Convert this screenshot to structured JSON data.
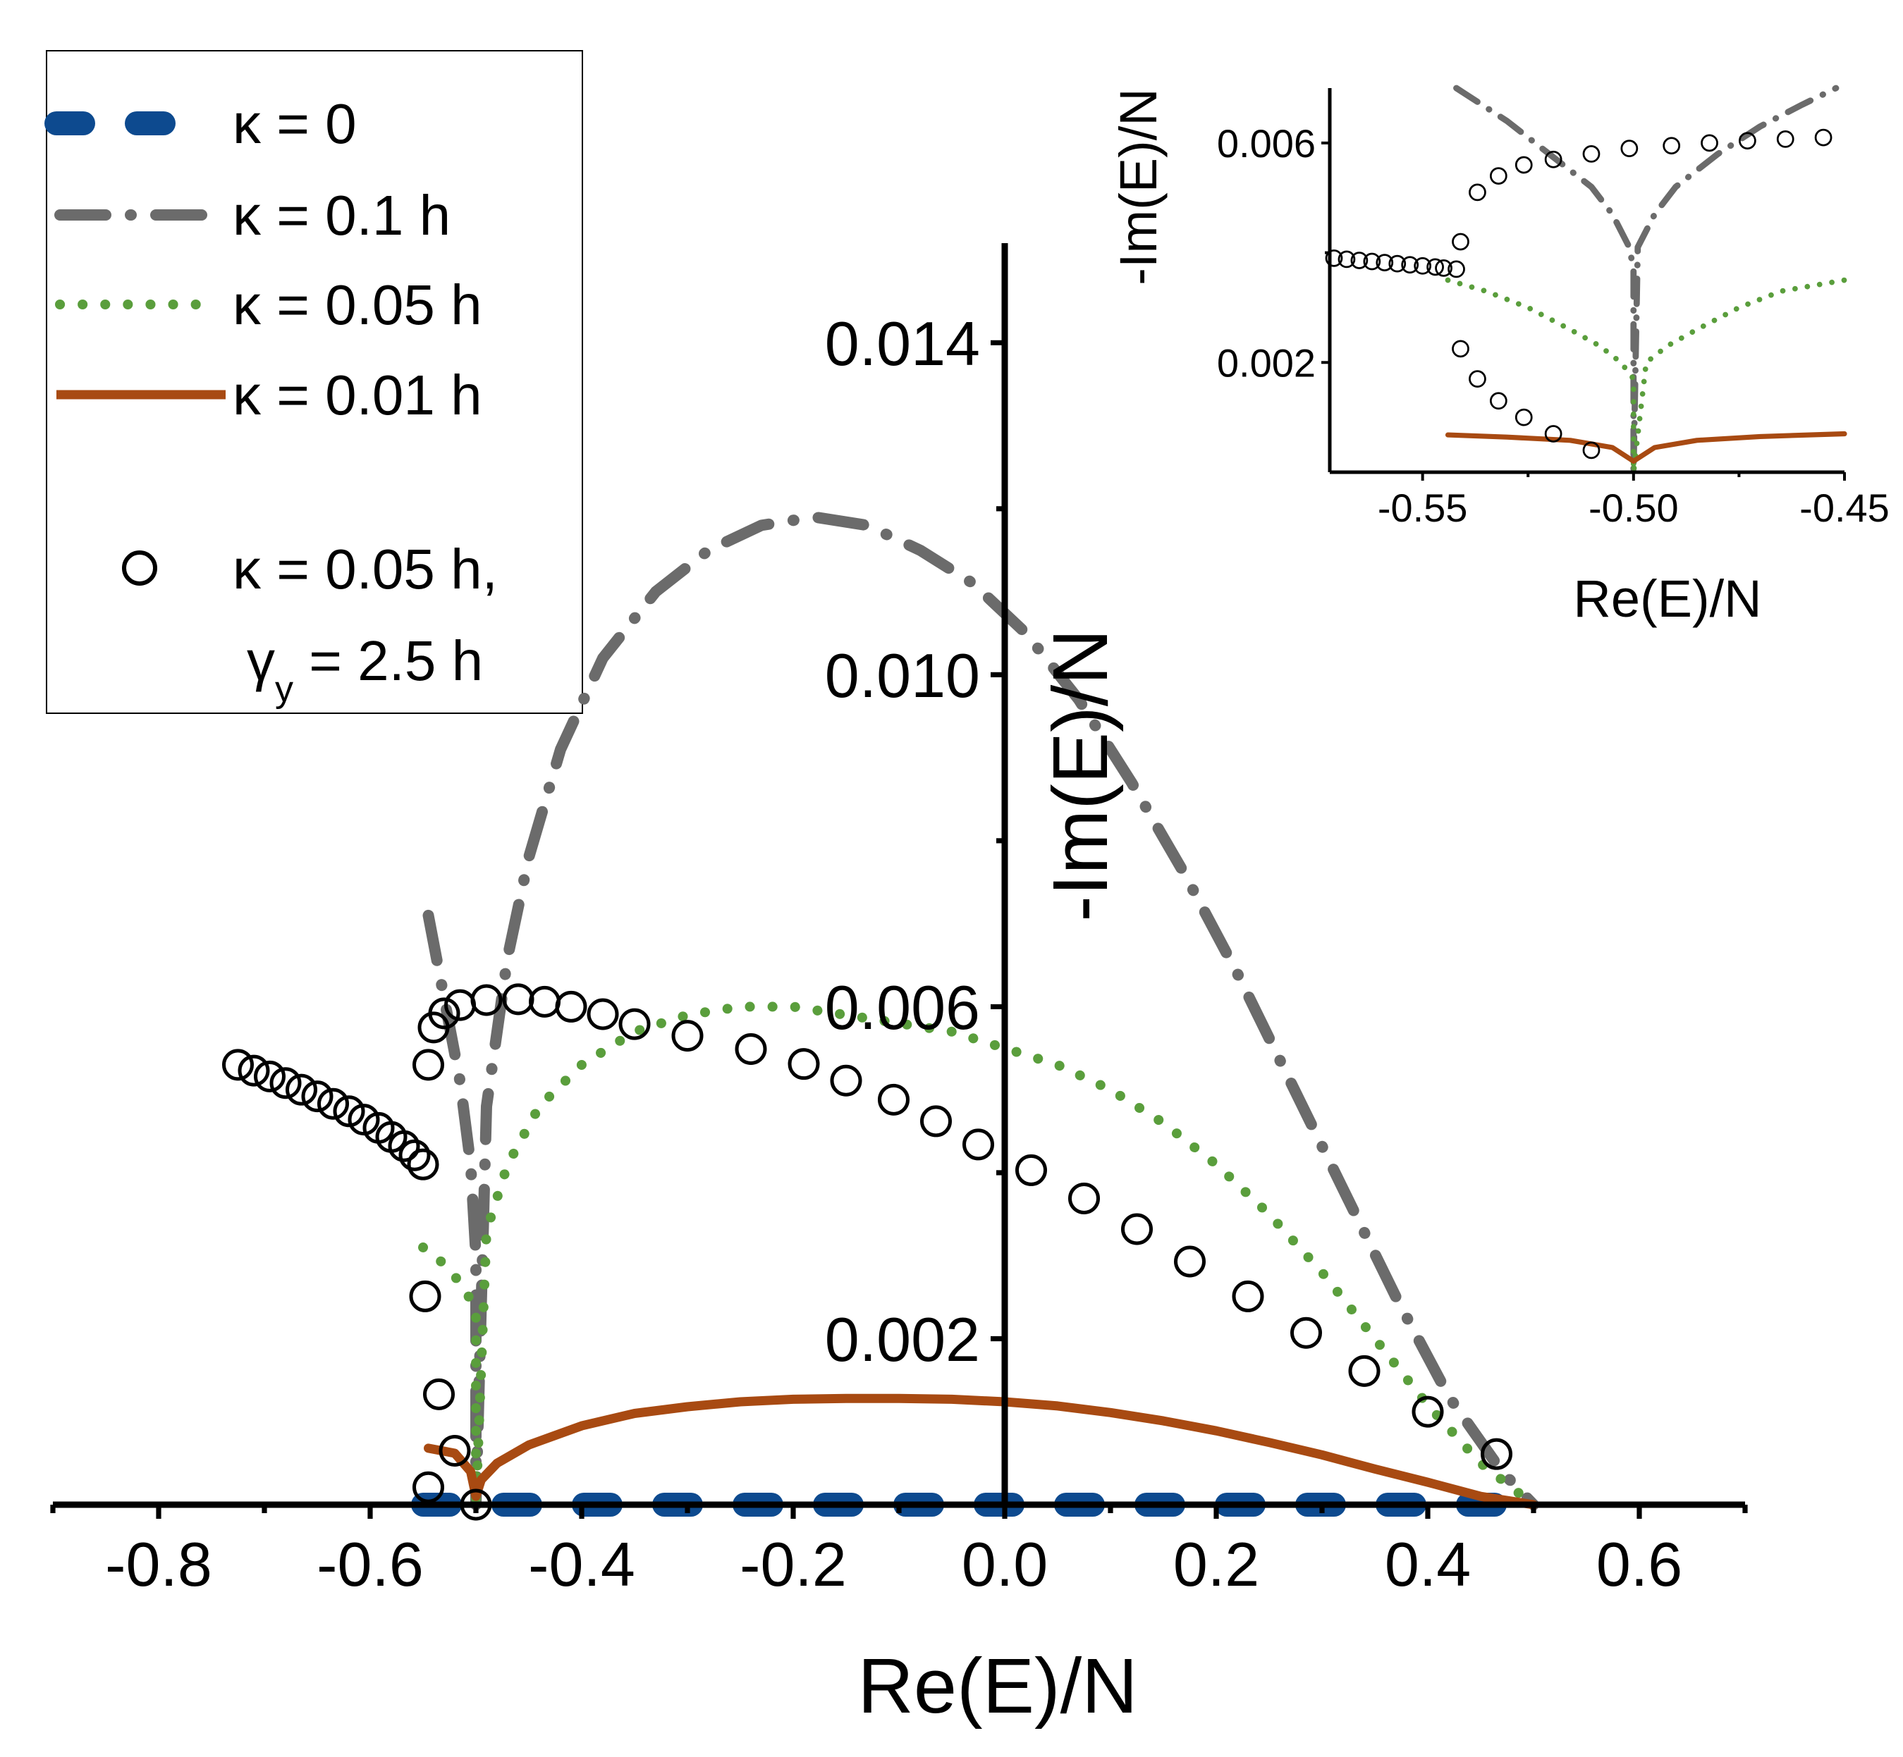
{
  "colors": {
    "k0": "#0d4a8f",
    "k01": "#6b6b6b",
    "k005": "#5a9e3c",
    "k001": "#a84a12",
    "circles": "#000000"
  },
  "legend": {
    "entries": [
      {
        "label": "κ = 0"
      },
      {
        "label": "κ = 0.1 h"
      },
      {
        "label": "κ = 0.05 h"
      },
      {
        "label": "κ = 0.01 h"
      },
      {
        "label": "κ = 0.05 h,"
      }
    ],
    "gamma_label": "γ",
    "gamma_sub": "y",
    "gamma_rest": " = 2.5 h"
  },
  "chart_data": [
    {
      "id": "main",
      "type": "scatter",
      "xlabel": "Re(E)/N",
      "ylabel": "-Im(E)/N",
      "xlim": [
        -0.9,
        0.7
      ],
      "ylim": [
        0,
        0.0152
      ],
      "x_ticks": [
        "-0.8",
        "-0.6",
        "-0.4",
        "-0.2",
        "0.0",
        "0.2",
        "0.4",
        "0.6"
      ],
      "x_tick_values": [
        -0.8,
        -0.6,
        -0.4,
        -0.2,
        0.0,
        0.2,
        0.4,
        0.6
      ],
      "y_ticks": [
        "0.002",
        "0.006",
        "0.010",
        "0.014"
      ],
      "y_tick_values": [
        0.002,
        0.006,
        0.01,
        0.014
      ],
      "series": [
        {
          "name": "κ = 0",
          "style": "dash-blue",
          "x": [
            -0.55,
            0.5
          ],
          "y": [
            0.0,
            0.0
          ]
        },
        {
          "name": "κ = 0.1 h",
          "style": "dashdot-gray",
          "x": [
            -0.545,
            -0.53,
            -0.515,
            -0.505,
            -0.5,
            -0.5,
            -0.49,
            -0.47,
            -0.45,
            -0.42,
            -0.38,
            -0.33,
            -0.28,
            -0.23,
            -0.18,
            -0.13,
            -0.08,
            -0.03,
            0.02,
            0.07,
            0.12,
            0.17,
            0.22,
            0.27,
            0.32,
            0.37,
            0.42,
            0.47,
            0.5
          ],
          "y": [
            0.0071,
            0.0061,
            0.0051,
            0.0041,
            0.003,
            0.0,
            0.0048,
            0.0066,
            0.0078,
            0.0091,
            0.0102,
            0.011,
            0.0115,
            0.0118,
            0.0119,
            0.0118,
            0.0115,
            0.0111,
            0.0105,
            0.0097,
            0.0087,
            0.0076,
            0.0064,
            0.0051,
            0.0038,
            0.0025,
            0.0013,
            0.0004,
            0.0
          ]
        },
        {
          "name": "κ = 0.05 h",
          "style": "dot-green",
          "x": [
            -0.55,
            -0.53,
            -0.51,
            -0.5,
            -0.5,
            -0.49,
            -0.47,
            -0.44,
            -0.4,
            -0.35,
            -0.3,
            -0.25,
            -0.2,
            -0.15,
            -0.1,
            -0.05,
            0.0,
            0.05,
            0.1,
            0.15,
            0.2,
            0.25,
            0.3,
            0.35,
            0.4,
            0.45,
            0.48,
            0.5
          ],
          "y": [
            0.0031,
            0.0029,
            0.0026,
            0.0023,
            0.0,
            0.0033,
            0.0041,
            0.0048,
            0.0053,
            0.0057,
            0.0059,
            0.006,
            0.006,
            0.0059,
            0.0058,
            0.0057,
            0.0055,
            0.0053,
            0.005,
            0.0046,
            0.0041,
            0.0035,
            0.0028,
            0.002,
            0.0012,
            0.0005,
            0.0002,
            0.0
          ]
        },
        {
          "name": "κ = 0.01 h",
          "style": "solid-brown",
          "x": [
            -0.545,
            -0.52,
            -0.505,
            -0.5,
            -0.495,
            -0.48,
            -0.45,
            -0.4,
            -0.35,
            -0.3,
            -0.25,
            -0.2,
            -0.15,
            -0.1,
            -0.05,
            0.0,
            0.05,
            0.1,
            0.15,
            0.2,
            0.25,
            0.3,
            0.35,
            0.4,
            0.45,
            0.5
          ],
          "y": [
            0.00068,
            0.00062,
            0.0004,
            0.0001,
            0.0003,
            0.0005,
            0.00072,
            0.00095,
            0.0011,
            0.00118,
            0.00124,
            0.00127,
            0.00128,
            0.00128,
            0.00127,
            0.00124,
            0.00119,
            0.00111,
            0.00101,
            0.00089,
            0.00075,
            0.0006,
            0.00043,
            0.00027,
            0.0001,
            0.0
          ]
        },
        {
          "name": "κ = 0.05 h, γy = 2.5 h",
          "style": "circles",
          "x": [
            -0.725,
            -0.71,
            -0.695,
            -0.68,
            -0.665,
            -0.65,
            -0.635,
            -0.62,
            -0.606,
            -0.592,
            -0.58,
            -0.568,
            -0.558,
            -0.55,
            -0.545,
            -0.548,
            -0.54,
            -0.53,
            -0.515,
            -0.49,
            -0.46,
            -0.435,
            -0.41,
            -0.38,
            -0.35,
            -0.3,
            -0.24,
            -0.19,
            -0.15,
            -0.105,
            -0.065,
            -0.025,
            0.025,
            0.075,
            0.125,
            0.175,
            0.23,
            0.285,
            0.34,
            0.4,
            0.465,
            -0.545,
            -0.535,
            -0.52,
            -0.5
          ],
          "y": [
            0.0053,
            0.00523,
            0.00516,
            0.00508,
            0.005,
            0.00492,
            0.00483,
            0.00474,
            0.00464,
            0.00454,
            0.00443,
            0.00432,
            0.00421,
            0.0041,
            0.0053,
            0.00251,
            0.00575,
            0.00592,
            0.00602,
            0.00608,
            0.00609,
            0.00606,
            0.006,
            0.00591,
            0.00579,
            0.00565,
            0.00549,
            0.00531,
            0.00511,
            0.00488,
            0.00462,
            0.00434,
            0.00403,
            0.00369,
            0.00332,
            0.00293,
            0.00251,
            0.00207,
            0.00161,
            0.00112,
            0.00061,
            0.00021,
            0.00133,
            0.00065,
            0.0
          ]
        }
      ]
    },
    {
      "id": "inset",
      "type": "scatter",
      "xlabel": "Re(E)/N",
      "ylabel": "-Im(E)/N",
      "xlim": [
        -0.572,
        -0.45
      ],
      "ylim": [
        0.0,
        0.007
      ],
      "x_ticks": [
        "-0.55",
        "-0.50",
        "-0.45"
      ],
      "x_tick_values": [
        -0.55,
        -0.5,
        -0.45
      ],
      "y_ticks": [
        "0.002",
        "0.006"
      ],
      "y_tick_values": [
        0.002,
        0.006
      ],
      "series": [
        {
          "name": "κ = 0.1 h",
          "style": "dashdot-gray",
          "x": [
            -0.542,
            -0.53,
            -0.52,
            -0.51,
            -0.505,
            -0.501,
            -0.5,
            -0.5,
            -0.499,
            -0.495,
            -0.49,
            -0.48,
            -0.47,
            -0.46,
            -0.452
          ],
          "y": [
            0.007,
            0.0064,
            0.0058,
            0.0052,
            0.0047,
            0.0041,
            0.0037,
            0.0,
            0.0041,
            0.0047,
            0.0052,
            0.0058,
            0.0063,
            0.0067,
            0.007
          ]
        },
        {
          "name": "κ = 0.05 h",
          "style": "dot-green",
          "x": [
            -0.544,
            -0.535,
            -0.525,
            -0.515,
            -0.508,
            -0.503,
            -0.5,
            -0.5,
            -0.497,
            -0.492,
            -0.485,
            -0.475,
            -0.465,
            -0.45
          ],
          "y": [
            0.0035,
            0.0033,
            0.003,
            0.0026,
            0.0023,
            0.002,
            0.0017,
            0.0,
            0.002,
            0.0023,
            0.0026,
            0.003,
            0.0033,
            0.0035
          ]
        },
        {
          "name": "κ = 0.01 h",
          "style": "solid-brown",
          "x": [
            -0.544,
            -0.53,
            -0.515,
            -0.505,
            -0.5,
            -0.495,
            -0.485,
            -0.47,
            -0.45
          ],
          "y": [
            0.00068,
            0.00064,
            0.00058,
            0.00045,
            0.0002,
            0.00045,
            0.00058,
            0.00065,
            0.0007
          ]
        },
        {
          "name": "κ = 0.05 h, γy = 2.5 h",
          "style": "circles",
          "x": [
            -0.571,
            -0.568,
            -0.565,
            -0.562,
            -0.559,
            -0.556,
            -0.553,
            -0.55,
            -0.547,
            -0.545,
            -0.542,
            -0.541,
            -0.537,
            -0.532,
            -0.526,
            -0.519,
            -0.51,
            -0.501,
            -0.491,
            -0.482,
            -0.473,
            -0.464,
            -0.455,
            -0.541,
            -0.537,
            -0.532,
            -0.526,
            -0.519,
            -0.51
          ],
          "y": [
            0.0039,
            0.00388,
            0.00386,
            0.00384,
            0.00382,
            0.0038,
            0.00378,
            0.00376,
            0.00374,
            0.00372,
            0.0037,
            0.0042,
            0.0051,
            0.0054,
            0.0056,
            0.0057,
            0.0058,
            0.0059,
            0.00595,
            0.006,
            0.00604,
            0.00607,
            0.0061,
            0.00225,
            0.0017,
            0.0013,
            0.001,
            0.0007,
            0.0004
          ]
        }
      ]
    }
  ]
}
